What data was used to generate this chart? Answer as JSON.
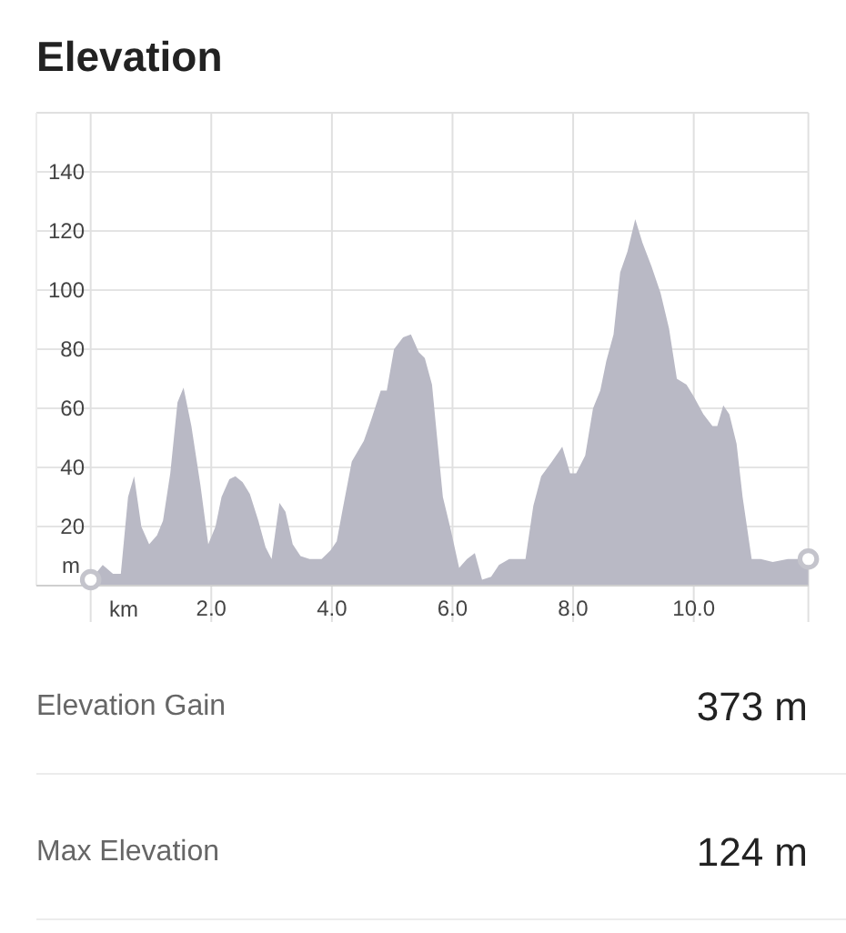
{
  "chart_data": {
    "type": "area",
    "title": "Elevation",
    "xlabel": "km",
    "ylabel": "m",
    "xlim": [
      -0.9,
      11.9
    ],
    "ylim": [
      0,
      160
    ],
    "xticks": [
      {
        "value": 0,
        "label": null
      },
      {
        "value": 2,
        "label": "2.0"
      },
      {
        "value": 4,
        "label": "4.0"
      },
      {
        "value": 6,
        "label": "6.0"
      },
      {
        "value": 8,
        "label": "8.0"
      },
      {
        "value": 10,
        "label": "10.0"
      }
    ],
    "yticks": [
      20,
      40,
      60,
      80,
      100,
      120,
      140
    ],
    "grid": true,
    "series": [
      {
        "color": "#b9b9c5",
        "x": [
          0,
          0.2,
          0.37,
          0.5,
          0.62,
          0.72,
          0.84,
          0.97,
          1.1,
          1.2,
          1.32,
          1.44,
          1.54,
          1.67,
          1.82,
          1.95,
          2.07,
          2.17,
          2.3,
          2.4,
          2.52,
          2.64,
          2.78,
          2.9,
          3.0,
          3.13,
          3.23,
          3.35,
          3.48,
          3.63,
          3.83,
          3.98,
          4.08,
          4.18,
          4.33,
          4.53,
          4.65,
          4.81,
          4.91,
          5.03,
          5.18,
          5.31,
          5.44,
          5.54,
          5.66,
          5.74,
          5.84,
          5.97,
          6.11,
          6.24,
          6.37,
          6.49,
          6.64,
          6.77,
          6.94,
          7.21,
          7.34,
          7.47,
          7.65,
          7.82,
          7.95,
          8.05,
          8.2,
          8.33,
          8.45,
          8.55,
          8.67,
          8.78,
          8.9,
          9.03,
          9.15,
          9.3,
          9.45,
          9.59,
          9.72,
          9.88,
          10.0,
          10.16,
          10.31,
          10.39,
          10.49,
          10.59,
          10.71,
          10.81,
          10.96,
          11.11,
          11.31,
          11.56,
          11.9
        ],
        "values": [
          2,
          7,
          4,
          4,
          30,
          37,
          20,
          14,
          17,
          22,
          38,
          62,
          67,
          54,
          34,
          14,
          20,
          30,
          36,
          37,
          35,
          31,
          22,
          13,
          9,
          28,
          25,
          14,
          10,
          9,
          9,
          12,
          15,
          26,
          42,
          49,
          56,
          66,
          66,
          80,
          84,
          85,
          79,
          77,
          68,
          51,
          30,
          19,
          6,
          9,
          11,
          2,
          3,
          7,
          9,
          9,
          27,
          37,
          42,
          47,
          38,
          38,
          44,
          60,
          66,
          76,
          85,
          106,
          113,
          124,
          116,
          108,
          99,
          87,
          70,
          68,
          64,
          58,
          54,
          54,
          61,
          58,
          48,
          30,
          9,
          9,
          8,
          9,
          9
        ]
      },
      {
        "type": "scatter",
        "color": "#c4c4cc",
        "marker": "circle",
        "x": [
          0,
          11.9
        ],
        "values": [
          2,
          9
        ]
      }
    ],
    "annotations": [
      "Elevation Gain",
      "373 m",
      "Max Elevation",
      "124 m"
    ]
  }
}
